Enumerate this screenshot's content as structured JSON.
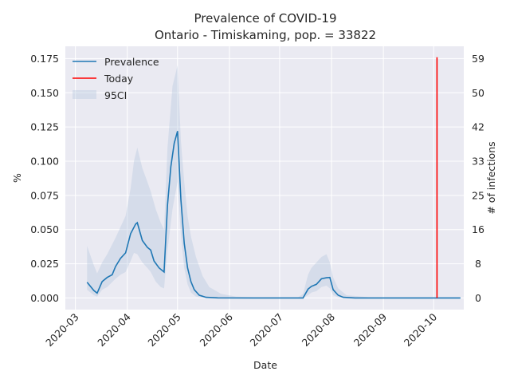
{
  "chart_data": {
    "type": "line",
    "title": "Prevalence of COVID-19",
    "subtitle": "Ontario - Timiskaming, pop. = 33822",
    "xlabel": "Date",
    "ylabel": "%",
    "ylabel_right": "# of infections",
    "ylim": [
      -0.0085,
      0.184
    ],
    "y_ticks": [
      0.0,
      0.025,
      0.05,
      0.075,
      0.1,
      0.125,
      0.15,
      0.175
    ],
    "y_tick_labels": [
      "0.000",
      "0.025",
      "0.050",
      "0.075",
      "0.100",
      "0.125",
      "0.150",
      "0.175"
    ],
    "y2_ticks": [
      0,
      8,
      16,
      25,
      33,
      42,
      50,
      59
    ],
    "x_range": [
      "2020-02-24",
      "2020-10-19"
    ],
    "x_ticks": [
      "2020-03-01",
      "2020-04-01",
      "2020-05-01",
      "2020-06-01",
      "2020-07-01",
      "2020-08-01",
      "2020-09-01",
      "2020-10-01"
    ],
    "x_tick_labels": [
      "2020-03",
      "2020-04",
      "2020-05",
      "2020-06",
      "2020-07",
      "2020-08",
      "2020-09",
      "2020-10"
    ],
    "grid": true,
    "legend_position": "top-left",
    "legend": [
      "Prevalence",
      "Today",
      "95CI"
    ],
    "colors": {
      "prevalence": "#1f77b4",
      "today": "#ff0000",
      "ci": "#b0c4de",
      "background": "#eaeaf2",
      "grid": "#ffffff"
    },
    "series": [
      {
        "name": "Prevalence",
        "points": [
          [
            "2020-03-08",
            0.0115
          ],
          [
            "2020-03-12",
            0.0055
          ],
          [
            "2020-03-14",
            0.0035
          ],
          [
            "2020-03-17",
            0.012
          ],
          [
            "2020-03-20",
            0.015
          ],
          [
            "2020-03-23",
            0.017
          ],
          [
            "2020-03-25",
            0.023
          ],
          [
            "2020-03-28",
            0.029
          ],
          [
            "2020-03-31",
            0.033
          ],
          [
            "2020-04-03",
            0.047
          ],
          [
            "2020-04-06",
            0.054
          ],
          [
            "2020-04-07",
            0.055
          ],
          [
            "2020-04-10",
            0.042
          ],
          [
            "2020-04-13",
            0.037
          ],
          [
            "2020-04-15",
            0.035
          ],
          [
            "2020-04-17",
            0.027
          ],
          [
            "2020-04-20",
            0.022
          ],
          [
            "2020-04-23",
            0.019
          ],
          [
            "2020-04-25",
            0.068
          ],
          [
            "2020-04-27",
            0.096
          ],
          [
            "2020-04-29",
            0.113
          ],
          [
            "2020-05-01",
            0.122
          ],
          [
            "2020-05-03",
            0.072
          ],
          [
            "2020-05-05",
            0.04
          ],
          [
            "2020-05-07",
            0.022
          ],
          [
            "2020-05-09",
            0.012
          ],
          [
            "2020-05-11",
            0.006
          ],
          [
            "2020-05-14",
            0.002
          ],
          [
            "2020-05-18",
            0.0005
          ],
          [
            "2020-05-25",
            0.0001
          ],
          [
            "2020-06-15",
            0.0
          ],
          [
            "2020-07-10",
            0.0
          ],
          [
            "2020-07-15",
            0.0
          ],
          [
            "2020-07-18",
            0.0065
          ],
          [
            "2020-07-20",
            0.0085
          ],
          [
            "2020-07-23",
            0.01
          ],
          [
            "2020-07-26",
            0.014
          ],
          [
            "2020-07-29",
            0.0148
          ],
          [
            "2020-07-31",
            0.015
          ],
          [
            "2020-08-02",
            0.006
          ],
          [
            "2020-08-05",
            0.002
          ],
          [
            "2020-08-08",
            0.0005
          ],
          [
            "2020-08-15",
            0.0
          ],
          [
            "2020-10-17",
            0.0
          ]
        ]
      },
      {
        "name": "95CI",
        "band": [
          [
            "2020-03-08",
            0.006,
            0.038
          ],
          [
            "2020-03-12",
            0.002,
            0.024
          ],
          [
            "2020-03-14",
            0.001,
            0.018
          ],
          [
            "2020-03-17",
            0.006,
            0.026
          ],
          [
            "2020-03-20",
            0.008,
            0.032
          ],
          [
            "2020-03-25",
            0.014,
            0.044
          ],
          [
            "2020-03-28",
            0.017,
            0.052
          ],
          [
            "2020-03-31",
            0.019,
            0.06
          ],
          [
            "2020-04-03",
            0.027,
            0.08
          ],
          [
            "2020-04-05",
            0.033,
            0.1
          ],
          [
            "2020-04-07",
            0.032,
            0.11
          ],
          [
            "2020-04-10",
            0.026,
            0.095
          ],
          [
            "2020-04-13",
            0.022,
            0.085
          ],
          [
            "2020-04-15",
            0.019,
            0.078
          ],
          [
            "2020-04-18",
            0.012,
            0.065
          ],
          [
            "2020-04-21",
            0.008,
            0.055
          ],
          [
            "2020-04-23",
            0.007,
            0.05
          ],
          [
            "2020-04-25",
            0.035,
            0.11
          ],
          [
            "2020-04-28",
            0.065,
            0.155
          ],
          [
            "2020-05-01",
            0.085,
            0.17
          ],
          [
            "2020-05-03",
            0.046,
            0.115
          ],
          [
            "2020-05-05",
            0.022,
            0.085
          ],
          [
            "2020-05-07",
            0.01,
            0.06
          ],
          [
            "2020-05-09",
            0.004,
            0.045
          ],
          [
            "2020-05-12",
            0.001,
            0.03
          ],
          [
            "2020-05-16",
            0.0002,
            0.016
          ],
          [
            "2020-05-20",
            0.0,
            0.008
          ],
          [
            "2020-05-27",
            0.0,
            0.003
          ],
          [
            "2020-06-05",
            0.0,
            0.001
          ],
          [
            "2020-06-20",
            0.0,
            0.0003
          ],
          [
            "2020-07-12",
            0.0,
            0.0005
          ],
          [
            "2020-07-15",
            0.0,
            0.003
          ],
          [
            "2020-07-18",
            0.002,
            0.017
          ],
          [
            "2020-07-20",
            0.004,
            0.022
          ],
          [
            "2020-07-23",
            0.005,
            0.026
          ],
          [
            "2020-07-26",
            0.008,
            0.03
          ],
          [
            "2020-07-29",
            0.009,
            0.032
          ],
          [
            "2020-07-31",
            0.007,
            0.026
          ],
          [
            "2020-08-02",
            0.002,
            0.015
          ],
          [
            "2020-08-05",
            0.0005,
            0.007
          ],
          [
            "2020-08-10",
            0.0,
            0.002
          ],
          [
            "2020-08-25",
            0.0,
            0.0003
          ],
          [
            "2020-10-17",
            0.0,
            0.0
          ]
        ]
      },
      {
        "name": "Today",
        "date": "2020-10-03",
        "y_range": [
          0.0,
          0.176
        ]
      }
    ]
  }
}
